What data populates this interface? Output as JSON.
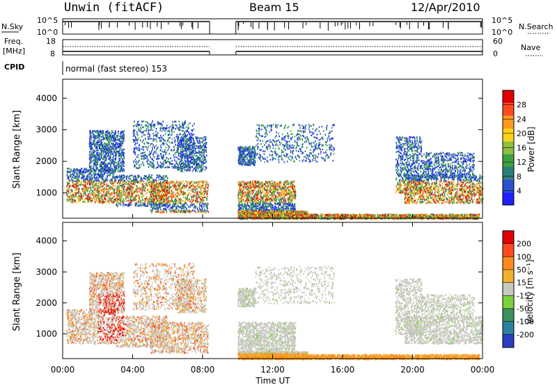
{
  "header": {
    "station": "Unwin (fitACF)",
    "beam": "Beam 15",
    "date": "12/Apr/2010"
  },
  "panels": {
    "nsky": {
      "label": "N.Sky",
      "left_ticks": [
        "10^5",
        "10^0"
      ],
      "right_ticks": [
        "10^5",
        "10^0"
      ],
      "right_label": "N.Search"
    },
    "freq": {
      "label_line1": "Freq.",
      "label_line2": "[MHz]",
      "left_ticks": [
        "18",
        "8"
      ],
      "right_ticks": [
        "60",
        "0"
      ],
      "right_label": "Nave"
    },
    "cpid": {
      "label": "CPID",
      "text": "normal (fast stereo) 153"
    }
  },
  "chart_data": [
    {
      "type": "heatmap",
      "title": "Power",
      "ylabel": "Slant Range [km]",
      "yticks": [
        "4000",
        "3000",
        "2000",
        "1000"
      ],
      "ylim": [
        200,
        4600
      ],
      "xlim": [
        0,
        24
      ],
      "colorbar": {
        "label": "Power [dB]",
        "ticks": [
          "28",
          "24",
          "20",
          "16",
          "12",
          "8",
          "4"
        ],
        "colors": [
          "#1f1fff",
          "#2a4fcf",
          "#2d7f7a",
          "#3fa03f",
          "#8fbf3f",
          "#ffd21f",
          "#ff9a1f",
          "#ff4a1f",
          "#e00000"
        ]
      },
      "data_gap_hours": [
        8.4,
        9.9
      ]
    },
    {
      "type": "heatmap",
      "title": "Velocity",
      "ylabel": "Slant Range [km]",
      "yticks": [
        "4000",
        "3000",
        "2000",
        "1000"
      ],
      "ylim": [
        200,
        4600
      ],
      "xlim": [
        0,
        24
      ],
      "xticks": [
        "00:00",
        "04:00",
        "08:00",
        "12:00",
        "16:00",
        "20:00",
        "00:00"
      ],
      "xlabel": "Time UT",
      "colorbar": {
        "label": "Velocity [m s⁻¹]",
        "ticks": [
          "200",
          "100",
          "50",
          "15",
          "-15",
          "-50",
          "-100",
          "-200"
        ],
        "colors": [
          "#2a3fbf",
          "#2d7f9f",
          "#3f8f5f",
          "#7fd03f",
          "#c8c8c0",
          "#f0b030",
          "#ff8a1f",
          "#ff4a1f",
          "#e00000"
        ]
      },
      "data_gap_hours": [
        8.4,
        9.9
      ]
    }
  ]
}
